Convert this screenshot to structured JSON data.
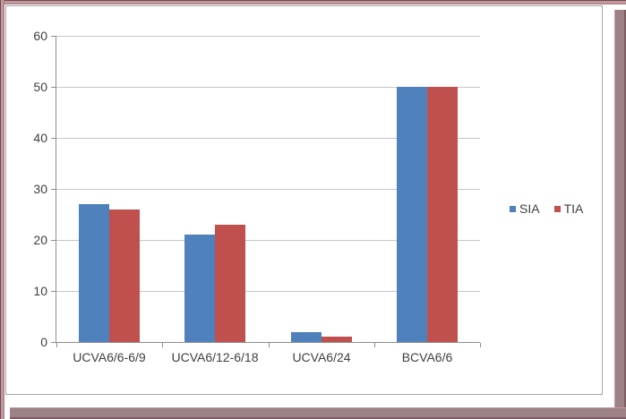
{
  "colors": {
    "frame_pink": "#c2989d",
    "frame_dark": "#6f4a50",
    "frame_mid": "#a57a7f",
    "shadow": "#9c8185",
    "shadow_edge": "#7d5d63",
    "chart_border": "#a6a6a6",
    "gridline": "#c6c6c6",
    "axis": "#8e8e8e",
    "text": "#3f3f3f",
    "series_blue": "#4f81bd",
    "series_red": "#c0504d"
  },
  "chart_data": {
    "type": "bar",
    "categories": [
      "UCVA6/6-6/9",
      "UCVA6/12-6/18",
      "UCVA6/24",
      "BCVA6/6"
    ],
    "series": [
      {
        "name": "SIA",
        "color": "#4f81bd",
        "values": [
          27,
          21,
          2,
          50
        ]
      },
      {
        "name": "TIA",
        "color": "#c0504d",
        "values": [
          26,
          23,
          1,
          50
        ]
      }
    ],
    "title": "",
    "xlabel": "",
    "ylabel": "",
    "ylim": [
      0,
      60
    ],
    "yticks": [
      0,
      10,
      20,
      30,
      40,
      50,
      60
    ],
    "grid": true,
    "legend_position": "right-middle"
  }
}
